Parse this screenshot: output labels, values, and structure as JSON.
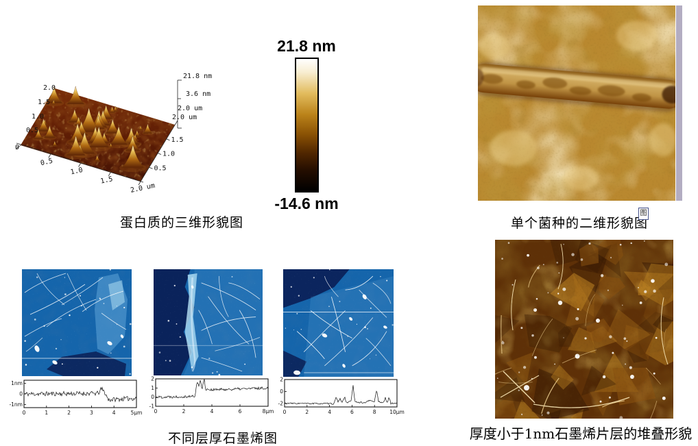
{
  "protein3d": {
    "caption": "蛋白质的三维形貌图",
    "z_labels": [
      "21.8 nm",
      "3.6 nm"
    ],
    "left_ticks": [
      "2.0",
      "1.5",
      "1.0",
      "0.5",
      "0"
    ],
    "bottom_ticks": [
      "0.5",
      "1.0",
      "1.5",
      "2.0 um"
    ],
    "right_ticks": [
      "2.0 um",
      "2.0 um",
      "1.5",
      "1.0",
      "0.5"
    ],
    "palette": {
      "base_top": "#7a2d08",
      "base_mid": "#5c1c05",
      "base_dark": "#431204",
      "peak_tip": "#f7efd8",
      "peak_gold": "#e6bd54",
      "peak_low": "#b06a12",
      "peak_foot": "#5c2406"
    }
  },
  "colorbar": {
    "max_label": "21.8 nm",
    "min_label": "-14.6 nm",
    "stops": [
      [
        "0%",
        "#ffffff"
      ],
      [
        "10%",
        "#f8eed2"
      ],
      [
        "26%",
        "#e2bc5e"
      ],
      [
        "42%",
        "#bb831a"
      ],
      [
        "57%",
        "#8a5204"
      ],
      [
        "71%",
        "#512700"
      ],
      [
        "84%",
        "#250e00"
      ],
      [
        "100%",
        "#000000"
      ]
    ]
  },
  "bacteria": {
    "caption": "单个菌种的二维形貌图",
    "palette": {
      "base": "#b9882f",
      "light": "#ecd08a",
      "dark": "#7c4b0a",
      "rod_hi": "#d2ad62",
      "rod_mid": "#c09445",
      "rod_dark": "#774108"
    }
  },
  "graphene": {
    "caption": "不同层厚石墨烯图",
    "palette": {
      "base": "#1565ab",
      "light": "#66aadc",
      "bright": "#b8e4f6",
      "dark": "#0a1e55",
      "line": "#ffffff"
    },
    "panels": [
      {
        "name": "graphene-thin-layer",
        "profile": {
          "xmax": 5,
          "ylim": [
            -1.3,
            1.3
          ],
          "noise": 0.22,
          "seed": 11,
          "y_ticks": [
            {
              "v": 1,
              "label": "1nm"
            },
            {
              "v": 0,
              "label": "0"
            },
            {
              "v": -1,
              "label": "-1nm"
            }
          ],
          "x_ticks": [
            {
              "v": 0,
              "label": "0"
            },
            {
              "v": 1,
              "label": "1"
            },
            {
              "v": 2,
              "label": "2"
            },
            {
              "v": 3,
              "label": "3"
            },
            {
              "v": 4,
              "label": "4"
            },
            {
              "v": 5,
              "label": "5µm"
            }
          ],
          "envelope": [
            [
              0,
              0
            ],
            [
              3.3,
              0.05
            ],
            [
              3.45,
              0.5
            ],
            [
              3.6,
              0.1
            ],
            [
              3.75,
              -0.55
            ],
            [
              5,
              -0.4
            ]
          ]
        }
      },
      {
        "name": "graphene-step-edge",
        "profile": {
          "xmax": 8,
          "ylim": [
            -1,
            2
          ],
          "noise": 0.15,
          "seed": 22,
          "y_ticks": [
            {
              "v": 2,
              "label": "2"
            },
            {
              "v": 1,
              "label": "1"
            },
            {
              "v": 0,
              "label": "0"
            },
            {
              "v": -1,
              "label": "-1"
            }
          ],
          "x_ticks": [
            {
              "v": 0,
              "label": "0"
            },
            {
              "v": 2,
              "label": "2"
            },
            {
              "v": 4,
              "label": "4"
            },
            {
              "v": 6,
              "label": "6"
            },
            {
              "v": 8,
              "label": "8µm"
            }
          ],
          "envelope": [
            [
              0,
              0
            ],
            [
              2.8,
              0.1
            ],
            [
              2.95,
              1.7
            ],
            [
              3.05,
              1.2
            ],
            [
              3.2,
              1.9
            ],
            [
              3.3,
              0.85
            ],
            [
              3.45,
              2.0
            ],
            [
              3.55,
              0.9
            ],
            [
              4,
              0.8
            ],
            [
              8,
              1.0
            ]
          ]
        }
      },
      {
        "name": "graphene-multi-layer",
        "profile": {
          "xmax": 10,
          "ylim": [
            -2.6,
            2
          ],
          "noise": 0.12,
          "seed": 33,
          "y_ticks": [
            {
              "v": 2,
              "label": "2"
            },
            {
              "v": 0,
              "label": "0"
            },
            {
              "v": -2,
              "label": "-2"
            }
          ],
          "x_ticks": [
            {
              "v": 0,
              "label": "0"
            },
            {
              "v": 2,
              "label": "2"
            },
            {
              "v": 4,
              "label": "4"
            },
            {
              "v": 6,
              "label": "6"
            },
            {
              "v": 8,
              "label": "8"
            },
            {
              "v": 10,
              "label": "10µm"
            }
          ],
          "envelope": [
            [
              0,
              -2
            ],
            [
              4.4,
              -2.05
            ],
            [
              4.6,
              -0.9
            ],
            [
              4.75,
              -1.9
            ],
            [
              4.95,
              -1.1
            ],
            [
              5.1,
              -1.9
            ],
            [
              5.35,
              -0.95
            ],
            [
              5.5,
              -1.85
            ],
            [
              5.9,
              -1.7
            ],
            [
              6.1,
              1.0
            ],
            [
              6.25,
              -1.75
            ],
            [
              7.1,
              -1.9
            ],
            [
              7.6,
              -1.5
            ],
            [
              8.0,
              -1.7
            ],
            [
              8.2,
              0.4
            ],
            [
              8.35,
              -1.7
            ],
            [
              8.8,
              -1.9
            ],
            [
              8.95,
              -1.0
            ],
            [
              9.1,
              -1.95
            ],
            [
              9.3,
              -1.0
            ],
            [
              9.45,
              -2.0
            ],
            [
              10,
              -1.95
            ]
          ]
        }
      }
    ]
  },
  "stacked": {
    "caption": "厚度小于1nm石墨烯片层的堆叠形貌",
    "palette": {
      "base": "#5e3007",
      "dark": "#381a03",
      "mid": "#8a5210",
      "light": "#b67d20",
      "speck": "#ffffff"
    }
  },
  "misc": {
    "placeholder_glyph": "图",
    "strip_color": "#b3adc2"
  }
}
